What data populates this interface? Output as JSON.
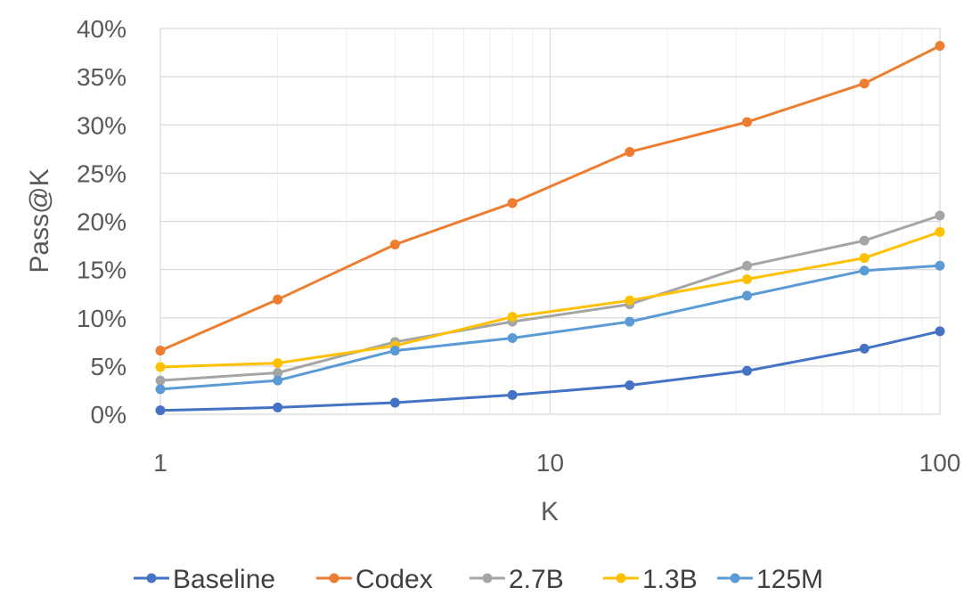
{
  "chart_data": {
    "type": "line",
    "x_scale": "log",
    "title": "",
    "xlabel": "K",
    "ylabel": "Pass@K",
    "xlim": [
      1,
      100
    ],
    "ylim": [
      0,
      0.4
    ],
    "x": [
      1,
      2,
      4,
      8,
      16,
      32,
      64,
      100
    ],
    "x_ticks": [
      1,
      10,
      100
    ],
    "x_tick_labels": [
      "1",
      "10",
      "100"
    ],
    "y_ticks": [
      0,
      0.05,
      0.1,
      0.15,
      0.2,
      0.25,
      0.3,
      0.35,
      0.4
    ],
    "y_tick_labels": [
      "0%",
      "5%",
      "10%",
      "15%",
      "20%",
      "25%",
      "30%",
      "35%",
      "40%"
    ],
    "grid": true,
    "legend_position": "bottom",
    "series": [
      {
        "name": "Baseline",
        "color": "#4472C4",
        "values": [
          0.004,
          0.007,
          0.012,
          0.02,
          0.03,
          0.045,
          0.068,
          0.086
        ]
      },
      {
        "name": "Codex",
        "color": "#ED7D31",
        "values": [
          0.066,
          0.119,
          0.176,
          0.219,
          0.272,
          0.303,
          0.343,
          0.382
        ]
      },
      {
        "name": "2.7B",
        "color": "#A5A5A5",
        "values": [
          0.035,
          0.043,
          0.075,
          0.096,
          0.114,
          0.154,
          0.18,
          0.206
        ]
      },
      {
        "name": "1.3B",
        "color": "#FFC000",
        "values": [
          0.049,
          0.053,
          0.071,
          0.101,
          0.118,
          0.14,
          0.162,
          0.189
        ]
      },
      {
        "name": "125M",
        "color": "#5B9BD5",
        "values": [
          0.026,
          0.035,
          0.066,
          0.079,
          0.096,
          0.123,
          0.149,
          0.154
        ]
      }
    ]
  }
}
